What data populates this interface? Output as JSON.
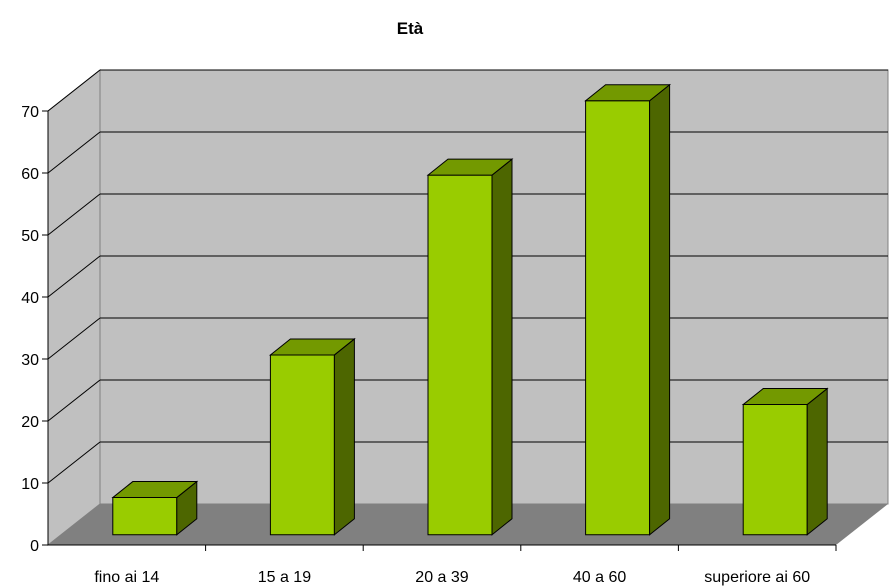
{
  "chart_data": {
    "type": "bar",
    "title": "Età",
    "categories": [
      "fino ai 14",
      "15 a 19",
      "20 a 39",
      "40 a 60",
      "superiore ai 60"
    ],
    "values": [
      6,
      29,
      58,
      70,
      21
    ],
    "y_ticks": [
      "0",
      "10",
      "20",
      "30",
      "40",
      "50",
      "60",
      "70"
    ],
    "ylim": [
      0,
      70
    ],
    "grid": true,
    "legend": "none",
    "colors": {
      "bar_front": "#99cc00",
      "bar_top": "#739900",
      "bar_side": "#4d6600",
      "back_wall": "#c0c0c0",
      "side_wall": "#c0c0c0",
      "floor": "#808080",
      "grid_line": "#000000"
    }
  }
}
